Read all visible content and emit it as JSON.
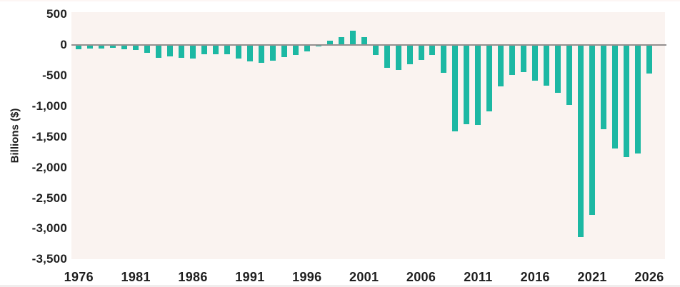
{
  "figure": {
    "page_bg": "#ffffff",
    "plot_bg": "#faf3f0",
    "bar_color": "#1cb8a3",
    "zero_line_color": "#949090",
    "text_color": "#1f1f1f"
  },
  "chart_data": {
    "type": "bar",
    "title": "",
    "xlabel": "",
    "ylabel": "Billions ($)",
    "ylim": [
      -3500,
      500
    ],
    "grid": false,
    "legend": "none",
    "yticks": [
      500,
      0,
      -500,
      -1000,
      -1500,
      -2000,
      -2500,
      -3000,
      -3500
    ],
    "ytick_labels": [
      "500",
      "0",
      "-500",
      "-1,000",
      "-1,500",
      "-2,000",
      "-2,500",
      "-3,000",
      "-3,500"
    ],
    "xtick_labels": [
      "1976",
      "1981",
      "1986",
      "1991",
      "1996",
      "2001",
      "2006",
      "2011",
      "2016",
      "2021",
      "2026"
    ],
    "xticks": [
      1976,
      1981,
      1986,
      1991,
      1996,
      2001,
      2006,
      2011,
      2016,
      2021,
      2026
    ],
    "years": [
      1976,
      1977,
      1978,
      1979,
      1980,
      1981,
      1982,
      1983,
      1984,
      1985,
      1986,
      1987,
      1988,
      1989,
      1990,
      1991,
      1992,
      1993,
      1994,
      1995,
      1996,
      1997,
      1998,
      1999,
      2000,
      2001,
      2002,
      2003,
      2004,
      2005,
      2006,
      2007,
      2008,
      2009,
      2010,
      2011,
      2012,
      2013,
      2014,
      2015,
      2016,
      2017,
      2018,
      2019,
      2020,
      2021,
      2022,
      2023,
      2024,
      2025,
      2026
    ],
    "values": [
      -74,
      -54,
      -59,
      -41,
      -74,
      -79,
      -128,
      -208,
      -185,
      -212,
      -221,
      -150,
      -155,
      -153,
      -221,
      -269,
      -290,
      -255,
      -203,
      -164,
      -107,
      -22,
      69,
      126,
      236,
      128,
      -158,
      -378,
      -413,
      -318,
      -248,
      -161,
      -459,
      -1413,
      -1294,
      -1300,
      -1087,
      -680,
      -485,
      -442,
      -585,
      -665,
      -779,
      -984,
      -3132,
      -2775,
      -1375,
      -1695,
      -1833,
      -1775,
      -470
    ]
  }
}
